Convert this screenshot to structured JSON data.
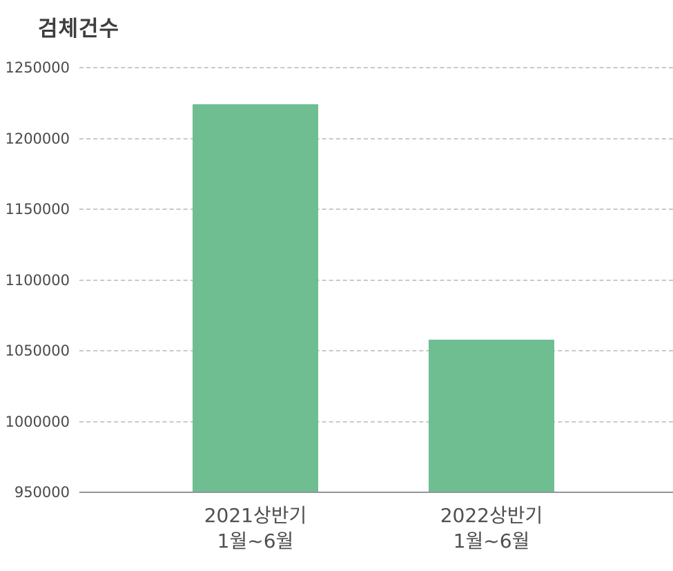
{
  "chart_data": {
    "type": "bar",
    "title": "검체건수",
    "categories": [
      "2021상반기\n1월~6월",
      "2022상반기\n1월~6월"
    ],
    "values": [
      1224000,
      1058000
    ],
    "yticks": [
      950000,
      1000000,
      1050000,
      1100000,
      1150000,
      1200000,
      1250000
    ],
    "ylim": [
      950000,
      1250000
    ],
    "xlabel": "",
    "ylabel": "",
    "legend": "none",
    "grid": "horizontal-dashed",
    "bar_color": "#6fbe92",
    "axis_line_color": "#949494",
    "gridline_color": "#c9c9c9",
    "text_color": "#4a4a4a",
    "title_color": "#3d3d3d"
  }
}
